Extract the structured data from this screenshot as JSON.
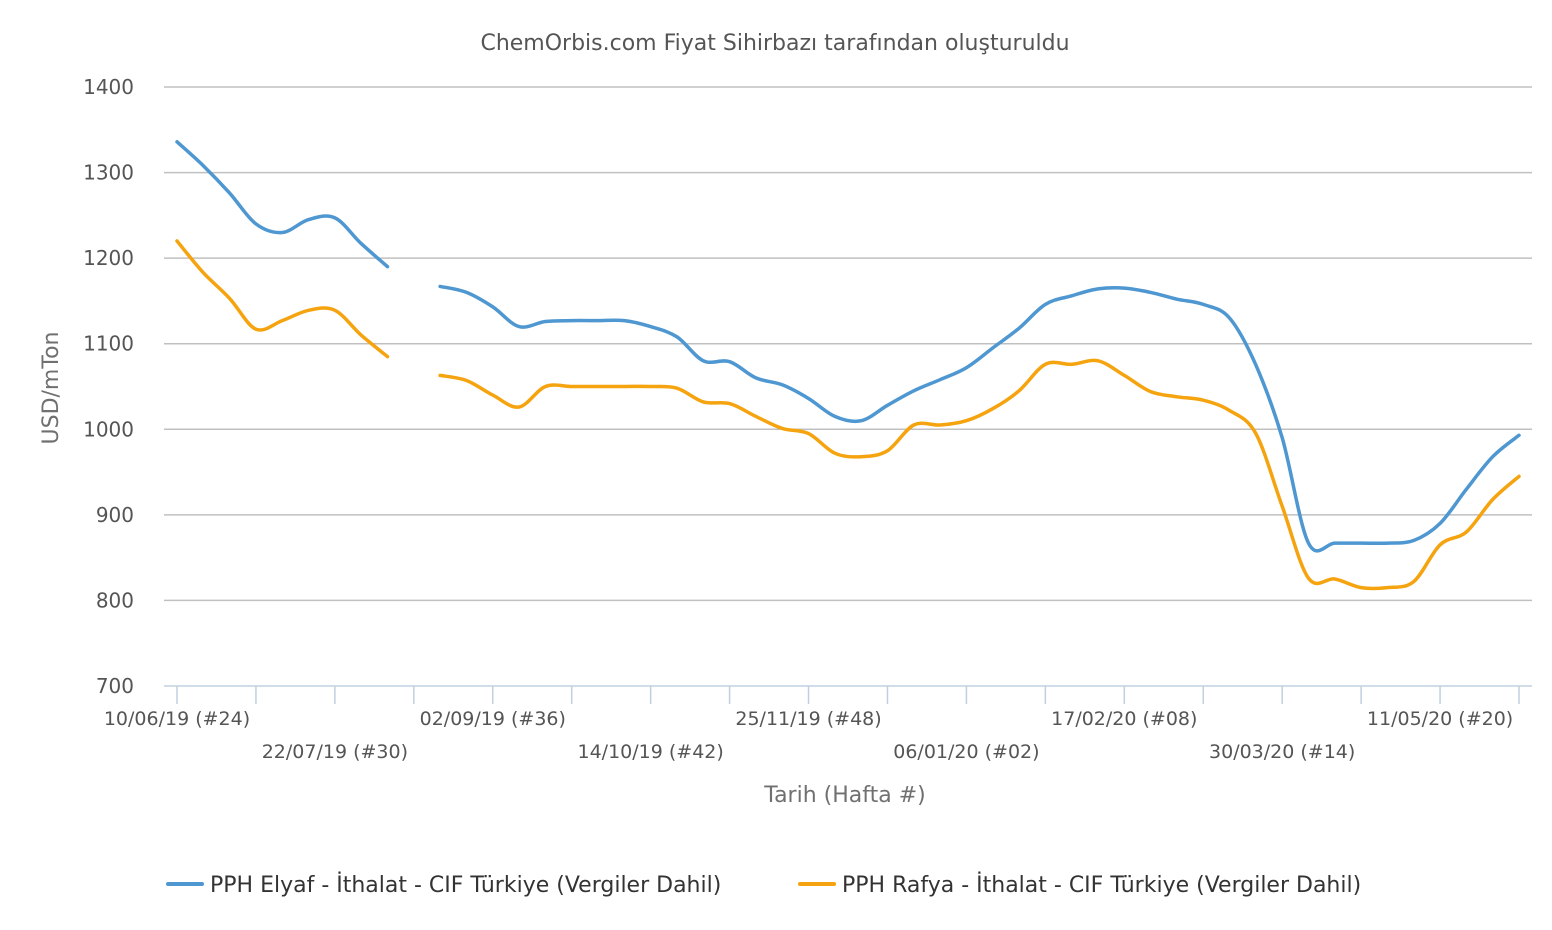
{
  "chart_data": {
    "type": "line",
    "title": "ChemOrbis.com Fiyat Sihirbazı tarafından oluşturuldu",
    "xlabel": "Tarih (Hafta #)",
    "ylabel": "USD/mTon",
    "ylim": [
      700,
      1400
    ],
    "yticks": [
      "700",
      "800",
      "900",
      "1000",
      "1100",
      "1200",
      "1300",
      "1400"
    ],
    "grid": true,
    "legend_position": "bottom",
    "x_tick_labels": [
      {
        "week": 0,
        "label": "10/06/19 (#24)",
        "row": 1
      },
      {
        "week": 6,
        "label": "22/07/19 (#30)",
        "row": 2
      },
      {
        "week": 12,
        "label": "02/09/19 (#36)",
        "row": 1
      },
      {
        "week": 18,
        "label": "14/10/19 (#42)",
        "row": 2
      },
      {
        "week": 24,
        "label": "25/11/19 (#48)",
        "row": 1
      },
      {
        "week": 30,
        "label": "06/01/20 (#02)",
        "row": 2
      },
      {
        "week": 36,
        "label": "17/02/20 (#08)",
        "row": 1
      },
      {
        "week": 42,
        "label": "30/03/20 (#14)",
        "row": 2
      },
      {
        "week": 48,
        "label": "11/05/20 (#20)",
        "row": 1
      }
    ],
    "x_range": [
      0,
      51
    ],
    "series": [
      {
        "name": "PPH Elyaf - İthalat - CIF Türkiye (Vergiler Dahil)",
        "color": "#4e97d1",
        "segments": [
          [
            [
              0,
              1336
            ],
            [
              1,
              1308
            ],
            [
              2,
              1276
            ],
            [
              3,
              1240
            ],
            [
              4,
              1230
            ],
            [
              5,
              1245
            ],
            [
              6,
              1247
            ],
            [
              7,
              1217
            ],
            [
              8,
              1190
            ]
          ],
          [
            [
              10,
              1167
            ],
            [
              11,
              1160
            ],
            [
              12,
              1143
            ],
            [
              13,
              1120
            ],
            [
              14,
              1126
            ],
            [
              15,
              1127
            ],
            [
              16,
              1127
            ],
            [
              17,
              1127
            ],
            [
              18,
              1120
            ],
            [
              19,
              1108
            ],
            [
              20,
              1080
            ],
            [
              21,
              1079
            ],
            [
              22,
              1060
            ],
            [
              23,
              1052
            ],
            [
              24,
              1036
            ],
            [
              25,
              1015
            ],
            [
              26,
              1010
            ],
            [
              27,
              1028
            ],
            [
              28,
              1045
            ],
            [
              29,
              1058
            ],
            [
              30,
              1072
            ],
            [
              31,
              1095
            ],
            [
              32,
              1118
            ],
            [
              33,
              1146
            ],
            [
              34,
              1156
            ],
            [
              35,
              1164
            ],
            [
              36,
              1165
            ],
            [
              37,
              1160
            ],
            [
              38,
              1152
            ],
            [
              39,
              1146
            ],
            [
              40,
              1130
            ],
            [
              41,
              1075
            ],
            [
              42,
              990
            ],
            [
              43,
              867
            ],
            [
              44,
              867
            ],
            [
              45,
              867
            ],
            [
              46,
              867
            ],
            [
              47,
              870
            ],
            [
              48,
              890
            ],
            [
              49,
              930
            ],
            [
              50,
              968
            ],
            [
              51,
              993
            ]
          ]
        ]
      },
      {
        "name": "PPH Rafya - İthalat - CIF Türkiye (Vergiler Dahil)",
        "color": "#f5a30f",
        "segments": [
          [
            [
              0,
              1220
            ],
            [
              1,
              1183
            ],
            [
              2,
              1153
            ],
            [
              3,
              1117
            ],
            [
              4,
              1127
            ],
            [
              5,
              1139
            ],
            [
              6,
              1139
            ],
            [
              7,
              1110
            ],
            [
              8,
              1085
            ]
          ],
          [
            [
              10,
              1063
            ],
            [
              11,
              1057
            ],
            [
              12,
              1040
            ],
            [
              13,
              1026
            ],
            [
              14,
              1050
            ],
            [
              15,
              1050
            ],
            [
              16,
              1050
            ],
            [
              17,
              1050
            ],
            [
              18,
              1050
            ],
            [
              19,
              1048
            ],
            [
              20,
              1032
            ],
            [
              21,
              1030
            ],
            [
              22,
              1015
            ],
            [
              23,
              1001
            ],
            [
              24,
              995
            ],
            [
              25,
              972
            ],
            [
              26,
              968
            ],
            [
              27,
              975
            ],
            [
              28,
              1005
            ],
            [
              29,
              1005
            ],
            [
              30,
              1010
            ],
            [
              31,
              1024
            ],
            [
              32,
              1045
            ],
            [
              33,
              1076
            ],
            [
              34,
              1076
            ],
            [
              35,
              1080
            ],
            [
              36,
              1063
            ],
            [
              37,
              1044
            ],
            [
              38,
              1038
            ],
            [
              39,
              1034
            ],
            [
              40,
              1022
            ],
            [
              41,
              995
            ],
            [
              42,
              910
            ],
            [
              43,
              826
            ],
            [
              44,
              825
            ],
            [
              45,
              815
            ],
            [
              46,
              815
            ],
            [
              47,
              822
            ],
            [
              48,
              865
            ],
            [
              49,
              880
            ],
            [
              50,
              918
            ],
            [
              51,
              945
            ]
          ]
        ]
      }
    ]
  }
}
